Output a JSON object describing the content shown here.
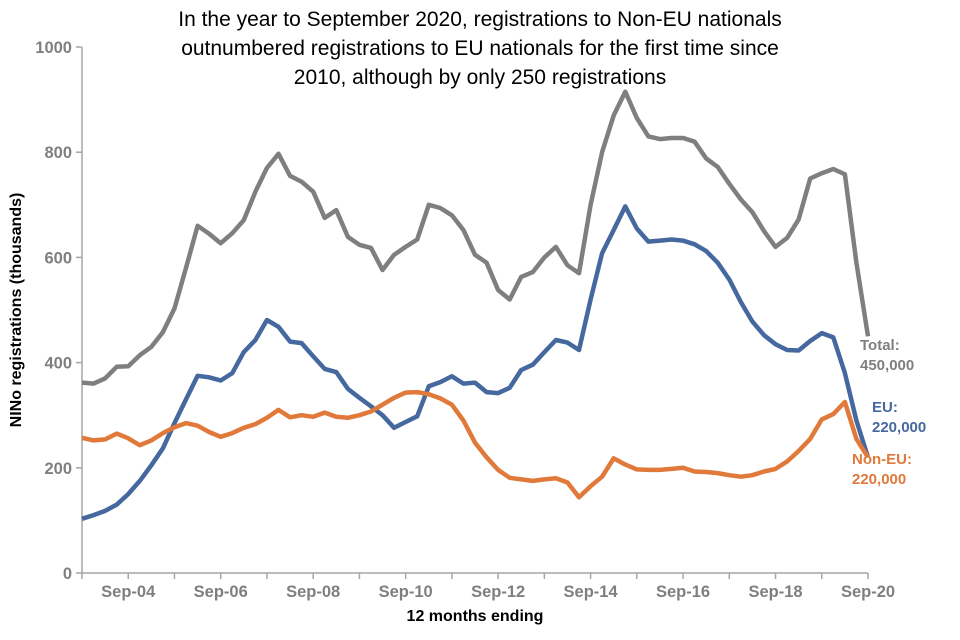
{
  "chart_data": {
    "type": "line",
    "title": "In the year to September 2020, registrations to Non-EU nationals outnumbered registrations to EU nationals for the first time since 2010, although by only 250 registrations",
    "title_lines": [
      "In the year to September 2020, registrations to Non-EU nationals",
      "outnumbered registrations to EU nationals for the first time since",
      "2010, although by only 250 registrations"
    ],
    "xlabel": "12 months ending",
    "ylabel": "NINo registrations (thousands)",
    "ylim": [
      0,
      1000
    ],
    "yticks": [
      0,
      200,
      400,
      600,
      800,
      1000
    ],
    "ytick_labels": [
      "0",
      "200",
      "400",
      "600",
      "800",
      "1000"
    ],
    "x_tick_labels": [
      "Sep-04",
      "Sep-06",
      "Sep-08",
      "Sep-10",
      "Sep-12",
      "Sep-14",
      "Sep-16",
      "Sep-18",
      "Sep-20"
    ],
    "x_period": "quarterly, Sep-03 to Sep-20",
    "x_years_span": 17,
    "grid": false,
    "legend_position": "line-end labels at right",
    "axis_color": "#A6A6A6",
    "tick_label_color": "#7F7F7F",
    "series": [
      {
        "name": "Total",
        "color": "#7F7F7F",
        "end_label": {
          "label": "Total:",
          "value": "450,000"
        },
        "values": [
          362,
          360,
          370,
          392,
          393,
          414,
          430,
          458,
          503,
          580,
          660,
          645,
          627,
          646,
          671,
          725,
          770,
          797,
          755,
          744,
          725,
          675,
          690,
          639,
          624,
          618,
          576,
          605,
          620,
          634,
          700,
          694,
          680,
          652,
          605,
          590,
          538,
          520,
          563,
          572,
          600,
          620,
          585,
          570,
          700,
          800,
          870,
          915,
          865,
          830,
          825,
          827,
          827,
          820,
          788,
          772,
          740,
          710,
          686,
          650,
          620,
          637,
          672,
          750,
          760,
          768,
          758,
          590,
          450
        ]
      },
      {
        "name": "EU",
        "color": "#45689E",
        "end_label": {
          "label": "EU:",
          "value": "220,000"
        },
        "values": [
          103,
          110,
          118,
          130,
          150,
          175,
          205,
          237,
          285,
          330,
          375,
          372,
          366,
          380,
          420,
          443,
          481,
          468,
          440,
          437,
          412,
          388,
          382,
          350,
          333,
          317,
          300,
          276,
          287,
          298,
          355,
          363,
          374,
          360,
          362,
          344,
          342,
          352,
          386,
          396,
          420,
          443,
          438,
          424,
          520,
          608,
          652,
          697,
          655,
          630,
          632,
          634,
          632,
          625,
          612,
          590,
          558,
          515,
          478,
          452,
          435,
          424,
          423,
          441,
          456,
          448,
          380,
          290,
          220
        ]
      },
      {
        "name": "Non-EU",
        "color": "#E0793A",
        "end_label": {
          "label": "Non-EU:",
          "value": "220,000"
        },
        "values": [
          257,
          252,
          254,
          265,
          256,
          243,
          252,
          266,
          277,
          285,
          280,
          268,
          259,
          266,
          276,
          283,
          295,
          310,
          296,
          300,
          297,
          305,
          297,
          295,
          300,
          307,
          320,
          333,
          343,
          344,
          340,
          332,
          320,
          290,
          248,
          220,
          196,
          181,
          178,
          175,
          178,
          180,
          172,
          144,
          165,
          183,
          218,
          206,
          197,
          196,
          196,
          198,
          200,
          193,
          192,
          190,
          186,
          183,
          186,
          193,
          198,
          212,
          232,
          255,
          292,
          302,
          325,
          255,
          220
        ]
      }
    ]
  }
}
